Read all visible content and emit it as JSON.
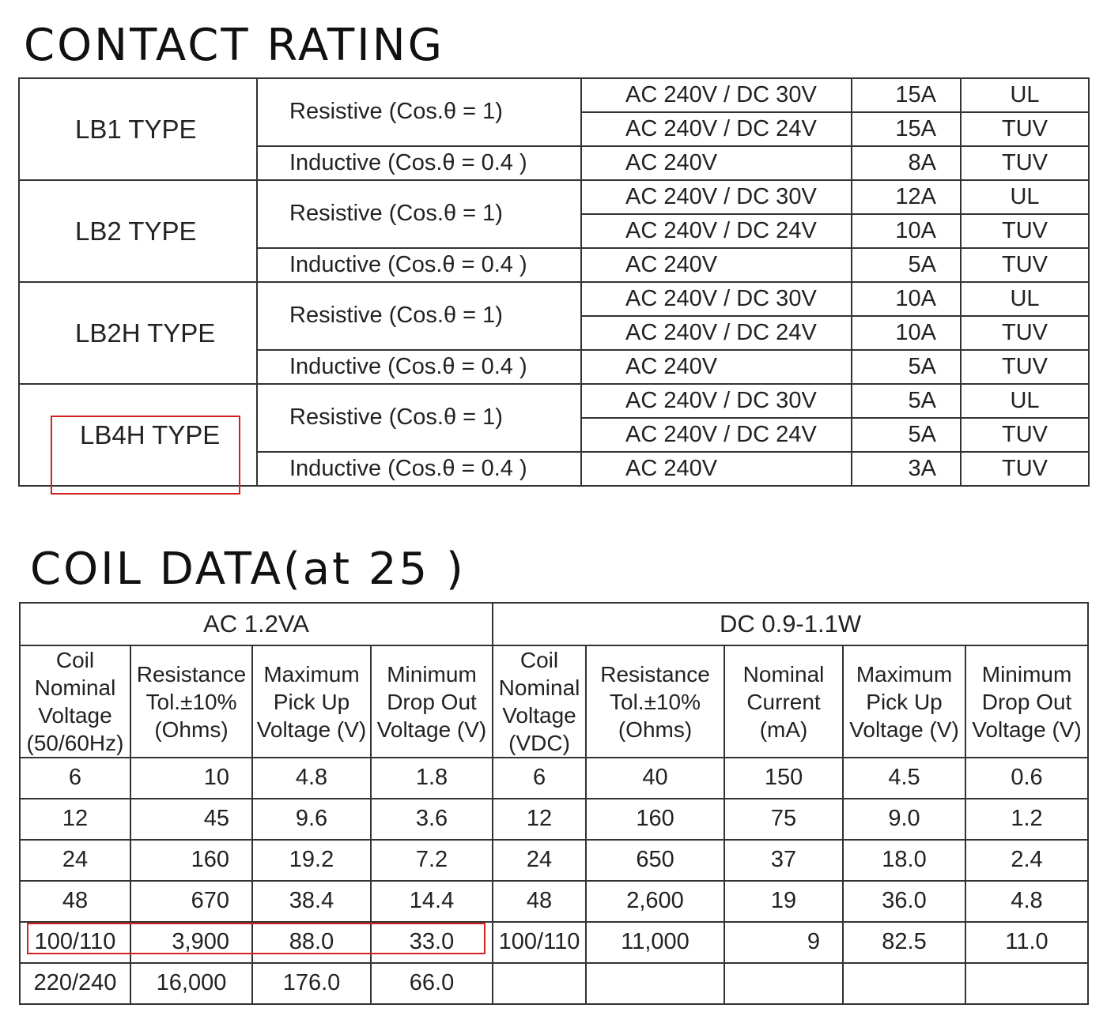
{
  "contact": {
    "title": "CONTACT RATING",
    "groups": [
      {
        "type": "LB1 TYPE",
        "resistive": "Resistive (Cos.θ = 1)",
        "inductive": "Inductive (Cos.θ = 0.4 )",
        "rows": [
          [
            "AC 240V / DC 30V",
            "15A",
            "UL"
          ],
          [
            "AC 240V / DC 24V",
            "15A",
            "TUV"
          ],
          [
            "AC 240V",
            "8A",
            "TUV"
          ]
        ]
      },
      {
        "type": "LB2 TYPE",
        "resistive": "Resistive (Cos.θ = 1)",
        "inductive": "Inductive (Cos.θ = 0.4 )",
        "rows": [
          [
            "AC 240V / DC 30V",
            "12A",
            "UL"
          ],
          [
            "AC 240V / DC 24V",
            "10A",
            "TUV"
          ],
          [
            "AC 240V",
            "5A",
            "TUV"
          ]
        ]
      },
      {
        "type": "LB2H TYPE",
        "resistive": "Resistive (Cos.θ = 1)",
        "inductive": "Inductive (Cos.θ = 0.4 )",
        "rows": [
          [
            "AC 240V / DC 30V",
            "10A",
            "UL"
          ],
          [
            "AC 240V / DC 24V",
            "10A",
            "TUV"
          ],
          [
            "AC 240V",
            "5A",
            "TUV"
          ]
        ]
      },
      {
        "type": "LB4H TYPE",
        "resistive": "Resistive (Cos.θ = 1)",
        "inductive": "Inductive (Cos.θ = 0.4 )",
        "rows": [
          [
            "AC 240V / DC 30V",
            "5A",
            "UL"
          ],
          [
            "AC 240V / DC 24V",
            "5A",
            "TUV"
          ],
          [
            "AC 240V",
            "3A",
            "TUV"
          ]
        ]
      }
    ]
  },
  "coil": {
    "title": "COIL DATA(at 25 )",
    "ac_group": "AC  1.2VA",
    "dc_group": "DC  0.9-1.1W",
    "headers": [
      "Coil Nominal Voltage (50/60Hz)",
      "Resistance Tol.±10% (Ohms)",
      "Maximum Pick Up Voltage (V)",
      "Minimum Drop Out Voltage (V)",
      "Coil Nominal Voltage (VDC)",
      "Resistance Tol.±10% (Ohms)",
      "Nominal Current (mA)",
      "Maximum Pick Up Voltage (V)",
      "Minimum Drop Out Voltage (V)"
    ],
    "rows": [
      [
        "6",
        "10",
        "4.8",
        "1.8",
        "6",
        "40",
        "150",
        "4.5",
        "0.6"
      ],
      [
        "12",
        "45",
        "9.6",
        "3.6",
        "12",
        "160",
        "75",
        "9.0",
        "1.2"
      ],
      [
        "24",
        "160",
        "19.2",
        "7.2",
        "24",
        "650",
        "37",
        "18.0",
        "2.4"
      ],
      [
        "48",
        "670",
        "38.4",
        "14.4",
        "48",
        "2,600",
        "19",
        "36.0",
        "4.8"
      ],
      [
        "100/110",
        "3,900",
        "88.0",
        "33.0",
        "100/110",
        "11,000",
        "9",
        "82.5",
        "11.0"
      ],
      [
        "220/240",
        "16,000",
        "176.0",
        "66.0",
        "",
        "",
        "",
        "",
        ""
      ]
    ]
  },
  "highlight_color": "#d62020"
}
